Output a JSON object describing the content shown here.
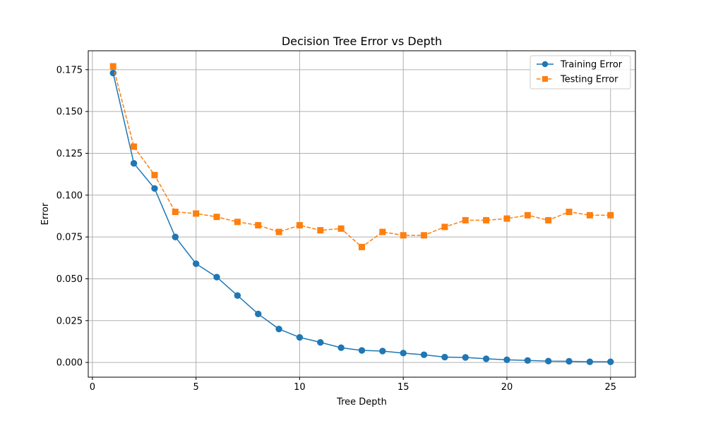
{
  "chart_data": {
    "type": "line",
    "title": "Decision Tree Error vs Depth",
    "xlabel": "Tree Depth",
    "ylabel": "Error",
    "xlim": [
      -0.2,
      26.2
    ],
    "ylim": [
      -0.0088,
      0.1863
    ],
    "xticks": [
      0,
      5,
      10,
      15,
      20,
      25
    ],
    "xtick_labels": [
      "0",
      "5",
      "10",
      "15",
      "20",
      "25"
    ],
    "yticks": [
      0.0,
      0.025,
      0.05,
      0.075,
      0.1,
      0.125,
      0.15,
      0.175
    ],
    "ytick_labels": [
      "0.000",
      "0.025",
      "0.050",
      "0.075",
      "0.100",
      "0.125",
      "0.150",
      "0.175"
    ],
    "grid": true,
    "legend_position": "top-right",
    "x": [
      1,
      2,
      3,
      4,
      5,
      6,
      7,
      8,
      9,
      10,
      11,
      12,
      13,
      14,
      15,
      16,
      17,
      18,
      19,
      20,
      21,
      22,
      23,
      24,
      25
    ],
    "series": [
      {
        "name": "Training Error",
        "color": "#1f77b4",
        "marker": "circle",
        "linestyle": "solid",
        "values": [
          0.173,
          0.119,
          0.104,
          0.075,
          0.059,
          0.051,
          0.04,
          0.029,
          0.02,
          0.015,
          0.012,
          0.0088,
          0.0072,
          0.0068,
          0.0056,
          0.0046,
          0.0032,
          0.003,
          0.0022,
          0.0016,
          0.0012,
          0.0008,
          0.0007,
          0.0004,
          0.0004
        ]
      },
      {
        "name": "Testing Error",
        "color": "#ff7f0e",
        "marker": "square",
        "linestyle": "dashed",
        "values": [
          0.177,
          0.129,
          0.112,
          0.09,
          0.089,
          0.087,
          0.084,
          0.082,
          0.078,
          0.082,
          0.079,
          0.08,
          0.069,
          0.078,
          0.076,
          0.076,
          0.081,
          0.085,
          0.085,
          0.086,
          0.088,
          0.085,
          0.09,
          0.088,
          0.088
        ]
      }
    ]
  }
}
